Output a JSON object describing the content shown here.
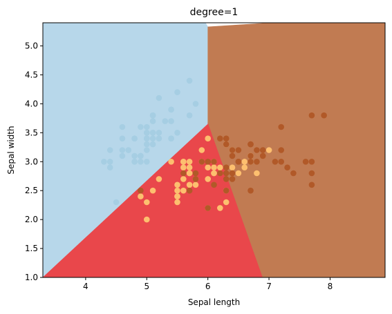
{
  "chart_data": {
    "type": "scatter",
    "title": "degree=1",
    "xlabel": "Sepal length",
    "ylabel": "Sepal width",
    "xlim": [
      3.3,
      8.9
    ],
    "ylim": [
      1.0,
      5.4
    ],
    "x_ticks": [
      "4",
      "5",
      "6",
      "7",
      "8"
    ],
    "y_ticks": [
      "1.0",
      "1.5",
      "2.0",
      "2.5",
      "3.0",
      "3.5",
      "4.0",
      "4.5",
      "5.0"
    ],
    "grid": false,
    "legend": "none",
    "decision_regions": [
      {
        "class": "setosa",
        "color": "#b7d7ea",
        "polygon": [
          [
            3.3,
            1.0
          ],
          [
            3.3,
            5.4
          ],
          [
            5.96,
            5.4
          ],
          [
            6.0,
            5.33
          ],
          [
            6.0,
            3.65
          ]
        ]
      },
      {
        "class": "versicolor",
        "color": "#e9474b",
        "polygon": [
          [
            3.3,
            1.0
          ],
          [
            6.0,
            3.65
          ],
          [
            6.0,
            3.68
          ],
          [
            6.9,
            1.0
          ]
        ]
      },
      {
        "class": "virginica",
        "color": "#c17b52",
        "polygon": [
          [
            6.0,
            3.68
          ],
          [
            6.0,
            5.33
          ],
          [
            7.05,
            5.4
          ],
          [
            8.9,
            5.4
          ],
          [
            8.9,
            1.0
          ],
          [
            6.9,
            1.0
          ]
        ]
      }
    ],
    "series": [
      {
        "class": "setosa",
        "color": "#a6cee3",
        "points": [
          [
            5.1,
            3.5
          ],
          [
            4.9,
            3.0
          ],
          [
            4.7,
            3.2
          ],
          [
            4.6,
            3.1
          ],
          [
            5.0,
            3.6
          ],
          [
            5.4,
            3.9
          ],
          [
            4.6,
            3.4
          ],
          [
            5.0,
            3.4
          ],
          [
            4.4,
            2.9
          ],
          [
            4.9,
            3.1
          ],
          [
            5.4,
            3.7
          ],
          [
            4.8,
            3.4
          ],
          [
            4.8,
            3.0
          ],
          [
            4.3,
            3.0
          ],
          [
            5.8,
            4.0
          ],
          [
            5.7,
            4.4
          ],
          [
            5.4,
            3.9
          ],
          [
            5.1,
            3.5
          ],
          [
            5.7,
            3.8
          ],
          [
            5.1,
            3.8
          ],
          [
            5.4,
            3.4
          ],
          [
            5.1,
            3.7
          ],
          [
            4.6,
            3.6
          ],
          [
            5.1,
            3.3
          ],
          [
            4.8,
            3.4
          ],
          [
            5.0,
            3.0
          ],
          [
            5.0,
            3.4
          ],
          [
            5.2,
            3.5
          ],
          [
            5.2,
            3.4
          ],
          [
            4.7,
            3.2
          ],
          [
            4.8,
            3.1
          ],
          [
            5.4,
            3.4
          ],
          [
            5.2,
            4.1
          ],
          [
            5.5,
            4.2
          ],
          [
            4.9,
            3.1
          ],
          [
            5.0,
            3.2
          ],
          [
            5.5,
            3.5
          ],
          [
            4.9,
            3.6
          ],
          [
            4.4,
            3.0
          ],
          [
            5.1,
            3.4
          ],
          [
            5.0,
            3.5
          ],
          [
            4.5,
            2.3
          ],
          [
            4.4,
            3.2
          ],
          [
            5.0,
            3.5
          ],
          [
            5.1,
            3.8
          ],
          [
            4.8,
            3.0
          ],
          [
            5.1,
            3.8
          ],
          [
            4.6,
            3.2
          ],
          [
            5.3,
            3.7
          ],
          [
            5.0,
            3.3
          ]
        ]
      },
      {
        "class": "versicolor",
        "color": "#fdbf6f",
        "points": [
          [
            7.0,
            3.2
          ],
          [
            6.4,
            3.2
          ],
          [
            6.9,
            3.1
          ],
          [
            5.5,
            2.3
          ],
          [
            6.5,
            2.8
          ],
          [
            5.7,
            2.8
          ],
          [
            6.3,
            3.3
          ],
          [
            4.9,
            2.4
          ],
          [
            6.6,
            2.9
          ],
          [
            5.2,
            2.7
          ],
          [
            5.0,
            2.0
          ],
          [
            5.9,
            3.0
          ],
          [
            6.0,
            2.2
          ],
          [
            6.1,
            2.9
          ],
          [
            5.6,
            2.9
          ],
          [
            6.7,
            3.1
          ],
          [
            5.6,
            3.0
          ],
          [
            5.8,
            2.7
          ],
          [
            6.2,
            2.2
          ],
          [
            5.6,
            2.5
          ],
          [
            5.9,
            3.2
          ],
          [
            6.1,
            2.8
          ],
          [
            6.3,
            2.5
          ],
          [
            6.1,
            2.8
          ],
          [
            6.4,
            2.9
          ],
          [
            6.6,
            3.0
          ],
          [
            6.8,
            2.8
          ],
          [
            6.7,
            3.0
          ],
          [
            6.0,
            2.9
          ],
          [
            5.7,
            2.6
          ],
          [
            5.5,
            2.4
          ],
          [
            5.5,
            2.4
          ],
          [
            5.8,
            2.7
          ],
          [
            6.0,
            2.7
          ],
          [
            5.4,
            3.0
          ],
          [
            6.0,
            3.4
          ],
          [
            6.7,
            3.1
          ],
          [
            6.3,
            2.3
          ],
          [
            5.6,
            3.0
          ],
          [
            5.5,
            2.5
          ],
          [
            5.5,
            2.6
          ],
          [
            6.1,
            3.0
          ],
          [
            5.8,
            2.6
          ],
          [
            5.0,
            2.3
          ],
          [
            5.6,
            2.7
          ],
          [
            5.7,
            3.0
          ],
          [
            5.7,
            2.9
          ],
          [
            6.2,
            2.9
          ],
          [
            5.1,
            2.5
          ],
          [
            5.7,
            2.8
          ]
        ]
      },
      {
        "class": "virginica",
        "color": "#b15928",
        "points": [
          [
            6.3,
            3.3
          ],
          [
            5.8,
            2.7
          ],
          [
            7.1,
            3.0
          ],
          [
            6.3,
            2.9
          ],
          [
            6.5,
            3.0
          ],
          [
            7.6,
            3.0
          ],
          [
            4.9,
            2.5
          ],
          [
            7.3,
            2.9
          ],
          [
            6.7,
            2.5
          ],
          [
            7.2,
            3.6
          ],
          [
            6.5,
            3.2
          ],
          [
            6.4,
            2.7
          ],
          [
            6.8,
            3.0
          ],
          [
            5.7,
            2.5
          ],
          [
            5.8,
            2.8
          ],
          [
            6.4,
            3.2
          ],
          [
            6.5,
            3.0
          ],
          [
            7.7,
            3.8
          ],
          [
            7.7,
            2.6
          ],
          [
            6.0,
            2.2
          ],
          [
            6.9,
            3.2
          ],
          [
            5.6,
            2.8
          ],
          [
            7.7,
            2.8
          ],
          [
            6.3,
            2.7
          ],
          [
            6.7,
            3.3
          ],
          [
            7.2,
            3.2
          ],
          [
            6.2,
            2.8
          ],
          [
            6.1,
            3.0
          ],
          [
            6.4,
            2.8
          ],
          [
            7.2,
            3.0
          ],
          [
            7.4,
            2.8
          ],
          [
            7.9,
            3.8
          ],
          [
            6.4,
            2.8
          ],
          [
            6.3,
            2.8
          ],
          [
            6.1,
            2.6
          ],
          [
            7.7,
            3.0
          ],
          [
            6.3,
            3.4
          ],
          [
            6.4,
            3.1
          ],
          [
            6.0,
            3.0
          ],
          [
            6.9,
            3.1
          ],
          [
            6.7,
            3.1
          ],
          [
            6.9,
            3.1
          ],
          [
            5.8,
            2.7
          ],
          [
            6.8,
            3.2
          ],
          [
            6.7,
            3.3
          ],
          [
            6.7,
            3.0
          ],
          [
            6.3,
            2.5
          ],
          [
            6.5,
            3.0
          ],
          [
            6.2,
            3.4
          ],
          [
            5.9,
            3.0
          ]
        ]
      }
    ]
  }
}
